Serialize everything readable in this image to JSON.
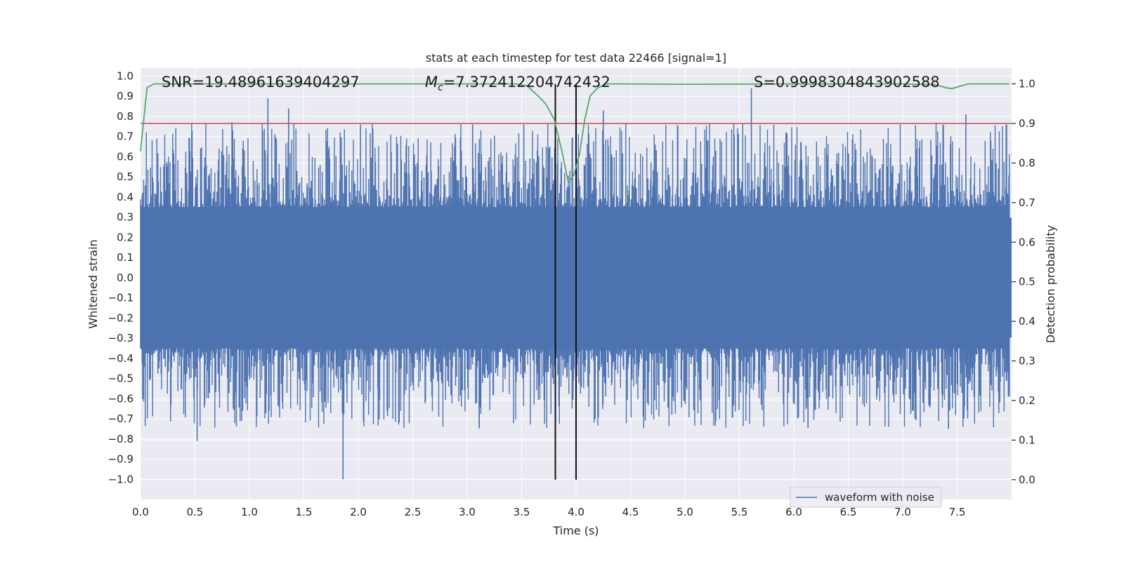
{
  "chart_data": {
    "type": "line",
    "title": "stats at each timestep for test data 22466 [signal=1]",
    "xlabel": "Time (s)",
    "ylabel": "Whitened strain",
    "y2label": "Detection probability",
    "xlim": [
      0.0,
      8.0
    ],
    "ylim": [
      -1.1,
      1.04
    ],
    "y2lim": [
      -0.05,
      1.04
    ],
    "xticks": [
      "0.0",
      "0.5",
      "1.0",
      "1.5",
      "2.0",
      "2.5",
      "3.0",
      "3.5",
      "4.0",
      "4.5",
      "5.0",
      "5.5",
      "6.0",
      "6.5",
      "7.0",
      "7.5"
    ],
    "yticks": [
      "1.0",
      "0.9",
      "0.8",
      "0.7",
      "0.6",
      "0.5",
      "0.4",
      "0.3",
      "0.2",
      "0.1",
      "0.0",
      "-0.1",
      "-0.2",
      "-0.3",
      "-0.4",
      "-0.5",
      "-0.6",
      "-0.7",
      "-0.8",
      "-0.9",
      "-1.0"
    ],
    "y2ticks": [
      "1.0",
      "0.9",
      "0.8",
      "0.7",
      "0.6",
      "0.5",
      "0.4",
      "0.3",
      "0.2",
      "0.1",
      "0.0"
    ],
    "annotations": {
      "snr": "SNR=19.48961639404297",
      "mc_symbol": "M",
      "mc_sub": "c",
      "mc_value": "=7.372412204742432",
      "s_value": "S=0.9998304843902588"
    },
    "legend": {
      "label": "waveform with noise",
      "position": "lower-right"
    },
    "series": [
      {
        "name": "waveform with noise",
        "color": "#4c72b0",
        "kind": "noise",
        "core_amplitude": 0.35,
        "spikes": [
          {
            "x": 0.52,
            "y": -0.81
          },
          {
            "x": 0.84,
            "y": 0.77
          },
          {
            "x": 1.17,
            "y": 0.89
          },
          {
            "x": 1.36,
            "y": 0.84
          },
          {
            "x": 1.86,
            "y": -1.0
          },
          {
            "x": 2.02,
            "y": 0.76
          },
          {
            "x": 2.18,
            "y": -0.55
          },
          {
            "x": 3.05,
            "y": 0.76
          },
          {
            "x": 3.11,
            "y": -0.74
          },
          {
            "x": 3.52,
            "y": 0.76
          },
          {
            "x": 3.81,
            "y": -0.66
          },
          {
            "x": 4.25,
            "y": 0.83
          },
          {
            "x": 4.88,
            "y": -0.68
          },
          {
            "x": 5.61,
            "y": 0.94
          },
          {
            "x": 6.13,
            "y": -0.74
          },
          {
            "x": 7.37,
            "y": 0.76
          },
          {
            "x": 7.42,
            "y": -0.75
          },
          {
            "x": 7.58,
            "y": 0.81
          },
          {
            "x": 7.95,
            "y": 0.76
          }
        ]
      },
      {
        "name": "detection probability",
        "color": "#55a868",
        "axis": "right",
        "x": [
          0.0,
          0.06,
          0.12,
          0.3,
          1.0,
          2.0,
          3.0,
          3.45,
          3.55,
          3.65,
          3.72,
          3.8,
          3.87,
          3.93,
          3.98,
          4.03,
          4.08,
          4.13,
          4.2,
          4.28,
          4.4,
          5.0,
          6.0,
          6.5,
          7.0,
          7.3,
          7.4,
          7.45,
          7.5,
          7.55,
          7.6,
          7.8,
          7.98
        ],
        "y": [
          0.83,
          0.99,
          1.0,
          1.0,
          1.0,
          1.0,
          1.0,
          1.0,
          0.995,
          0.97,
          0.95,
          0.91,
          0.83,
          0.75,
          0.77,
          0.82,
          0.91,
          0.97,
          0.99,
          1.0,
          1.0,
          0.999,
          1.0,
          1.0,
          1.0,
          0.998,
          0.99,
          0.988,
          0.992,
          0.996,
          1.0,
          1.0,
          1.0
        ]
      },
      {
        "name": "threshold",
        "color": "#c44e52",
        "axis": "right",
        "y": 0.9
      }
    ],
    "vlines": [
      {
        "x": 3.81,
        "color": "#111111"
      },
      {
        "x": 4.0,
        "color": "#111111"
      }
    ]
  }
}
